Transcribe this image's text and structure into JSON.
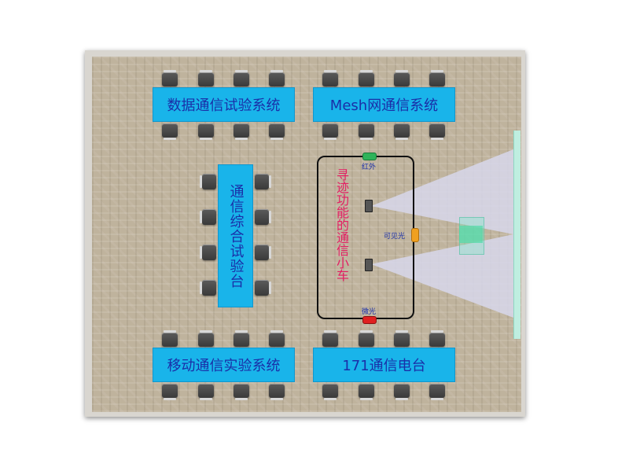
{
  "tables": {
    "data_comm": "数据通信试验系统",
    "mesh": "Mesh网通信系统",
    "integrated": "通信综合试验台",
    "mobile": "移动通信实验系统",
    "radio_171": "171通信电台"
  },
  "car": {
    "label": "寻迹功能的通信小车",
    "led_infrared": "红外",
    "led_visible": "可见光",
    "led_microwave": "微光"
  },
  "colors": {
    "table": "#19b4ea",
    "table_text": "#1a2fa8",
    "car_label": "#e41e63",
    "floor": "#bfb39d",
    "receiver": "#50dcaa",
    "led_infrared": "#2fb35a",
    "led_visible": "#f0a020",
    "led_microwave": "#e02020"
  }
}
